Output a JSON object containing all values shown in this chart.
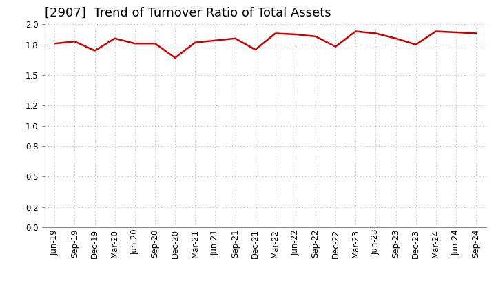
{
  "title": "[2907]  Trend of Turnover Ratio of Total Assets",
  "labels": [
    "Jun-19",
    "Sep-19",
    "Dec-19",
    "Mar-20",
    "Jun-20",
    "Sep-20",
    "Dec-20",
    "Mar-21",
    "Jun-21",
    "Sep-21",
    "Dec-21",
    "Mar-22",
    "Jun-22",
    "Sep-22",
    "Dec-22",
    "Mar-23",
    "Jun-23",
    "Sep-23",
    "Dec-23",
    "Mar-24",
    "Jun-24",
    "Sep-24"
  ],
  "values": [
    1.81,
    1.83,
    1.74,
    1.86,
    1.81,
    1.81,
    1.67,
    1.82,
    1.84,
    1.86,
    1.75,
    1.91,
    1.9,
    1.88,
    1.78,
    1.93,
    1.91,
    1.86,
    1.8,
    1.93,
    1.92,
    1.91
  ],
  "line_color": "#cc0000",
  "line_width": 1.8,
  "ylim": [
    0.0,
    2.0
  ],
  "yticks": [
    0.0,
    0.2,
    0.5,
    0.8,
    1.0,
    1.2,
    1.5,
    1.8,
    2.0
  ],
  "background_color": "#ffffff",
  "grid_color": "#bbbbbb",
  "title_fontsize": 13,
  "tick_fontsize": 8.5
}
